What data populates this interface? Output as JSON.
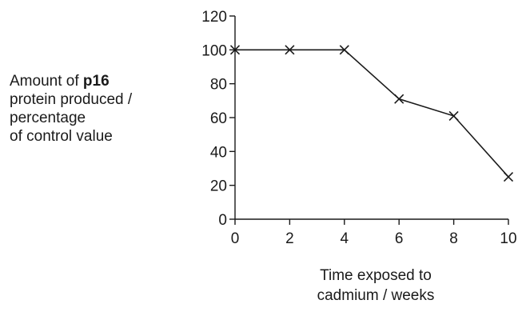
{
  "chart_data": {
    "type": "line",
    "x": [
      0,
      2,
      4,
      6,
      8,
      10
    ],
    "series": [
      {
        "values": [
          100,
          100,
          100,
          71,
          61,
          25
        ]
      }
    ],
    "ylabel": {
      "line1_prefix": "Amount of ",
      "line1_bold": "p16",
      "line2": "protein produced /",
      "line3": "percentage",
      "line4": "of control value"
    },
    "xlabel": {
      "line1": "Time exposed to",
      "line2": "cadmium / weeks"
    },
    "xlim": [
      0,
      10
    ],
    "ylim": [
      0,
      120
    ],
    "xticks": [
      0,
      2,
      4,
      6,
      8,
      10
    ],
    "yticks": [
      0,
      20,
      40,
      60,
      80,
      100,
      120
    ],
    "marker": "x",
    "grid": false,
    "color": "#1a1a1a"
  }
}
